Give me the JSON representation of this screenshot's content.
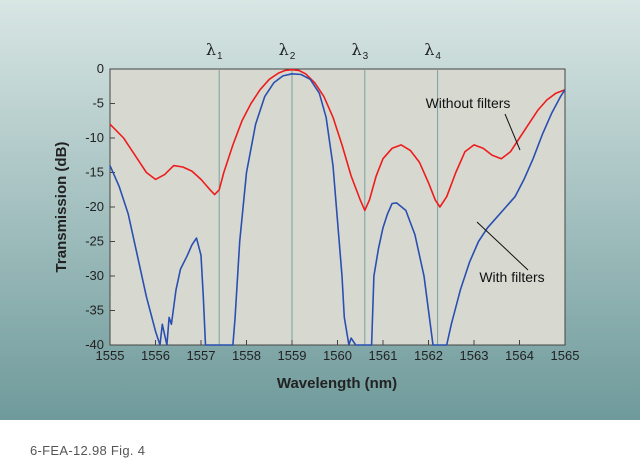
{
  "caption": "6-FEA-12.98 Fig. 4",
  "colors": {
    "panel_top": "#d8e6e4",
    "panel_bottom": "#6f9a9b",
    "plot_bg": "#d7d9d1",
    "with_filters": "#2a4fb0",
    "without_filters": "#ee1c1c",
    "channel_lines": "#7a9ea0"
  },
  "chart_data": {
    "type": "line",
    "title": "",
    "xlabel": "Wavelength (nm)",
    "ylabel": "Transmission (dB)",
    "xlim": [
      1555,
      1565
    ],
    "ylim": [
      -40,
      0
    ],
    "xticks": [
      "1555",
      "1556",
      "1557",
      "1558",
      "1559",
      "1560",
      "1561",
      "1562",
      "1563",
      "1564",
      "1565"
    ],
    "yticks": [
      "0",
      "-5",
      "-10",
      "-15",
      "-20",
      "-25",
      "-30",
      "-35",
      "-40"
    ],
    "grid": false,
    "channels": [
      {
        "symbol": "λ",
        "sub": "1",
        "x": 1557.4
      },
      {
        "symbol": "λ",
        "sub": "2",
        "x": 1559.0
      },
      {
        "symbol": "λ",
        "sub": "3",
        "x": 1560.6
      },
      {
        "symbol": "λ",
        "sub": "4",
        "x": 1562.2
      }
    ],
    "annotations": [
      {
        "text": "Without filters",
        "series": "without"
      },
      {
        "text": "With filters",
        "series": "with"
      }
    ],
    "series": [
      {
        "key": "without",
        "color": "#ee1c1c",
        "x": [
          1555.0,
          1555.3,
          1555.6,
          1555.8,
          1556.0,
          1556.2,
          1556.4,
          1556.6,
          1556.8,
          1557.0,
          1557.2,
          1557.3,
          1557.4,
          1557.5,
          1557.7,
          1557.9,
          1558.1,
          1558.3,
          1558.5,
          1558.7,
          1558.85,
          1559.0,
          1559.15,
          1559.3,
          1559.5,
          1559.7,
          1559.9,
          1560.1,
          1560.3,
          1560.5,
          1560.6,
          1560.7,
          1560.85,
          1561.0,
          1561.2,
          1561.4,
          1561.6,
          1561.8,
          1562.0,
          1562.15,
          1562.25,
          1562.4,
          1562.6,
          1562.8,
          1563.0,
          1563.2,
          1563.4,
          1563.6,
          1563.8,
          1564.0,
          1564.2,
          1564.4,
          1564.6,
          1564.8,
          1565.0
        ],
        "y": [
          -8,
          -10,
          -13,
          -15,
          -16,
          -15.3,
          -14,
          -14.2,
          -14.8,
          -16,
          -17.5,
          -18.2,
          -17.5,
          -15,
          -11,
          -7.5,
          -5,
          -3,
          -1.5,
          -0.6,
          -0.2,
          -0.1,
          -0.2,
          -0.7,
          -2,
          -4,
          -7,
          -11,
          -15.5,
          -19,
          -20.5,
          -19,
          -15.5,
          -13,
          -11.5,
          -11,
          -11.8,
          -13.5,
          -16.5,
          -19,
          -20,
          -18.5,
          -15,
          -12,
          -11,
          -11.5,
          -12.5,
          -13,
          -12,
          -10,
          -8,
          -6,
          -4.5,
          -3.5,
          -3
        ]
      },
      {
        "key": "with",
        "color": "#2a4fb0",
        "x": [
          1555.0,
          1555.2,
          1555.4,
          1555.6,
          1555.8,
          1556.0,
          1556.1,
          1556.15,
          1556.25,
          1556.3,
          1556.35,
          1556.45,
          1556.55,
          1556.7,
          1556.8,
          1556.9,
          1557.0,
          1557.05,
          1557.1,
          1557.15,
          1557.6,
          1557.7,
          1557.75,
          1557.85,
          1558.0,
          1558.2,
          1558.4,
          1558.6,
          1558.8,
          1559.0,
          1559.2,
          1559.4,
          1559.6,
          1559.75,
          1559.9,
          1560.0,
          1560.1,
          1560.15,
          1560.25,
          1560.3,
          1560.4,
          1560.6,
          1560.75,
          1560.8,
          1560.9,
          1561.0,
          1561.1,
          1561.2,
          1561.3,
          1561.5,
          1561.7,
          1561.9,
          1562.0,
          1562.1,
          1562.3,
          1562.4,
          1562.5,
          1562.7,
          1562.9,
          1563.1,
          1563.3,
          1563.5,
          1563.7,
          1563.9,
          1564.1,
          1564.3,
          1564.5,
          1564.7,
          1564.9,
          1565.0
        ],
        "y": [
          -14,
          -17,
          -21,
          -27,
          -33,
          -38,
          -40,
          -37,
          -40,
          -36,
          -37,
          -32,
          -29,
          -27,
          -25.5,
          -24.5,
          -27,
          -33,
          -40,
          -40,
          -40,
          -40,
          -36,
          -25,
          -15,
          -8,
          -4,
          -2,
          -1,
          -0.7,
          -0.8,
          -1.5,
          -3.5,
          -7,
          -14,
          -22,
          -30,
          -36,
          -40,
          -39,
          -40,
          -40,
          -40,
          -30,
          -26,
          -23,
          -21,
          -19.5,
          -19.4,
          -20.5,
          -24,
          -30,
          -35,
          -40,
          -40,
          -40,
          -37,
          -32,
          -28,
          -25,
          -23,
          -21.5,
          -20,
          -18.5,
          -16,
          -13,
          -9.5,
          -6.5,
          -4,
          -3
        ]
      }
    ]
  }
}
